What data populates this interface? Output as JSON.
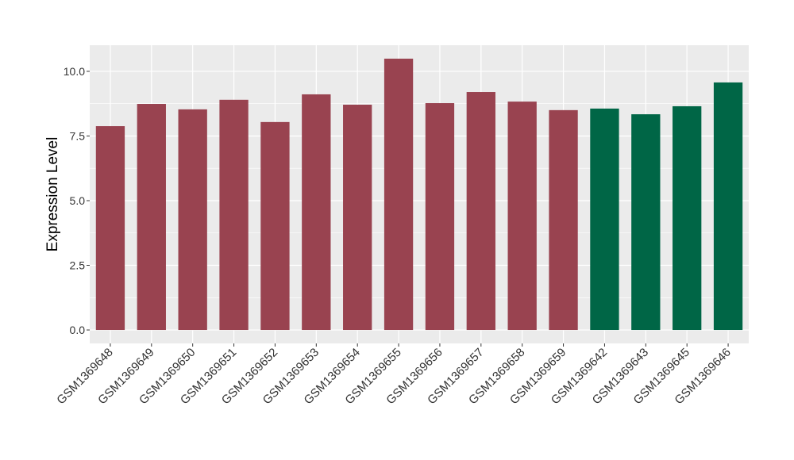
{
  "chart_data": {
    "type": "bar",
    "y_label": "Expression Level",
    "categories": [
      "GSM1369648",
      "GSM1369649",
      "GSM1369650",
      "GSM1369651",
      "GSM1369652",
      "GSM1369653",
      "GSM1369654",
      "GSM1369655",
      "GSM1369656",
      "GSM1369657",
      "GSM1369658",
      "GSM1369659",
      "GSM1369642",
      "GSM1369643",
      "GSM1369645",
      "GSM1369646"
    ],
    "values": [
      7.88,
      8.74,
      8.53,
      8.9,
      8.04,
      9.11,
      8.71,
      10.49,
      8.77,
      9.2,
      8.83,
      8.5,
      8.56,
      8.34,
      8.65,
      9.57
    ],
    "colors": [
      "#994350",
      "#994350",
      "#994350",
      "#994350",
      "#994350",
      "#994350",
      "#994350",
      "#994350",
      "#994350",
      "#994350",
      "#994350",
      "#994350",
      "#006646",
      "#006646",
      "#006646",
      "#006646"
    ],
    "ylim": [
      -0.52,
      11.01
    ],
    "yticks": [
      {
        "value": 0,
        "label": "0.0"
      },
      2.5,
      {
        "value": 5,
        "label": "5.0"
      },
      7.5,
      {
        "value": 10,
        "label": "10.0"
      }
    ],
    "grid": true
  }
}
